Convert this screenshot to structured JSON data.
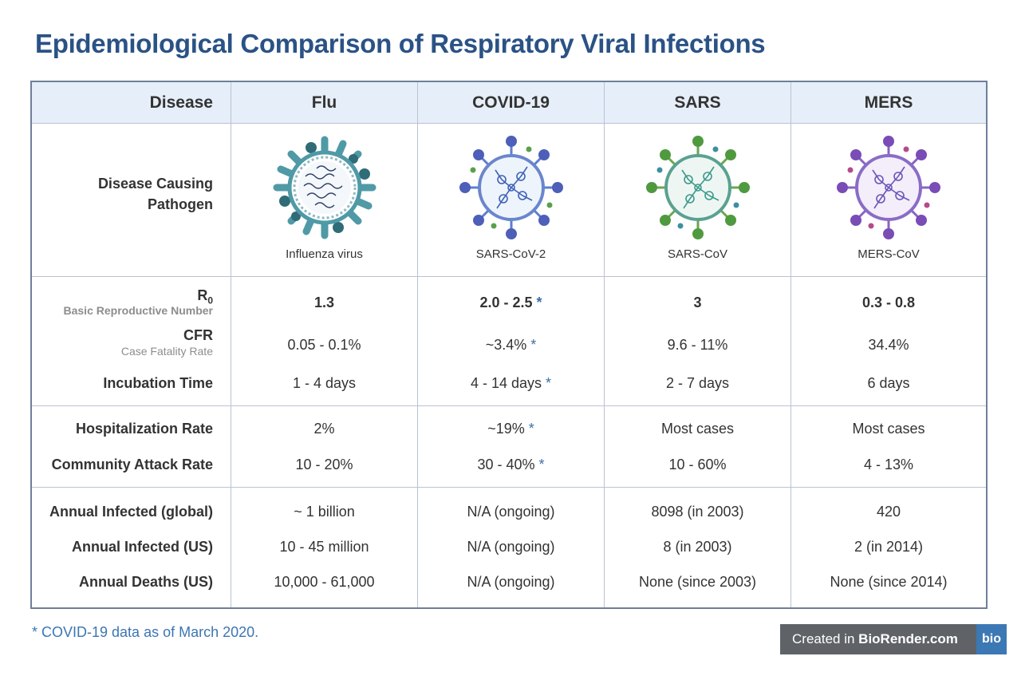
{
  "title": "Epidemiological Comparison of Respiratory Viral Infections",
  "table": {
    "header": {
      "label": "Disease",
      "columns": [
        "Flu",
        "COVID-19",
        "SARS",
        "MERS"
      ]
    },
    "pathogen": {
      "label_line1": "Disease Causing",
      "label_line2": "Pathogen",
      "names": [
        "Influenza virus",
        "SARS-CoV-2",
        "SARS-CoV",
        "MERS-CoV"
      ]
    },
    "r0": {
      "label": "R",
      "label_sub_script": "0",
      "sublabel": "Basic Reproductive Number",
      "values": [
        "1.3",
        "2.0 - 2.5",
        "3",
        "0.3 - 0.8"
      ]
    },
    "cfr": {
      "label": "CFR",
      "sublabel": "Case Fatality Rate",
      "values": [
        "0.05 - 0.1%",
        "~3.4%",
        "9.6 - 11%",
        "34.4%"
      ]
    },
    "incubation": {
      "label": "Incubation Time",
      "values": [
        "1 - 4 days",
        "4 - 14 days",
        "2 - 7 days",
        "6 days"
      ]
    },
    "hospitalization": {
      "label": "Hospitalization Rate",
      "values": [
        "2%",
        "~19%",
        "Most cases",
        "Most cases"
      ]
    },
    "attack": {
      "label": "Community Attack Rate",
      "values": [
        "10 - 20%",
        "30 - 40%",
        "10 - 60%",
        "4 - 13%"
      ]
    },
    "infected_global": {
      "label": "Annual Infected (global)",
      "values": [
        "~ 1 billion",
        "N/A (ongoing)",
        "8098 (in 2003)",
        "420"
      ]
    },
    "infected_us": {
      "label": "Annual Infected (US)",
      "values": [
        "10 - 45 million",
        "N/A (ongoing)",
        "8 (in 2003)",
        "2 (in 2014)"
      ]
    },
    "deaths_us": {
      "label": "Annual Deaths (US)",
      "values": [
        "10,000 - 61,000",
        "N/A (ongoing)",
        "None (since 2003)",
        "None (since 2014)"
      ]
    },
    "star": "*"
  },
  "footnote": "* COVID-19 data as of March 2020.",
  "badge": {
    "prefix": "Created in ",
    "brand": "BioRender.com",
    "logo": "bio"
  },
  "colors": {
    "title": "#2a5285",
    "accent": "#3c6fa8",
    "header_bg": "#e6eef9",
    "border": "#6f7f99"
  }
}
